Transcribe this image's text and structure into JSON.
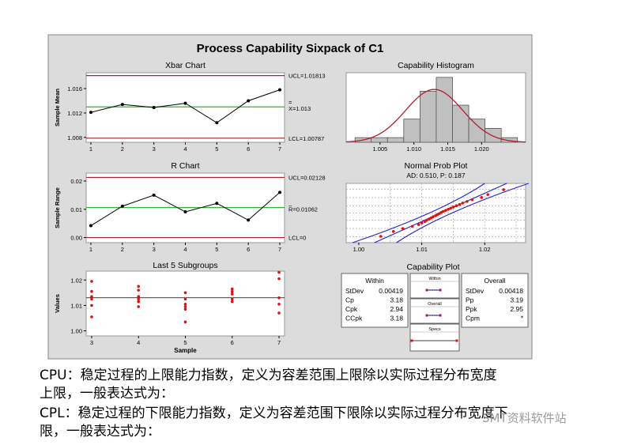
{
  "figure_title": "Process Capability Sixpack of C1",
  "chart_data": [
    {
      "type": "line",
      "title": "Xbar Chart",
      "ylabel": "Sample Mean",
      "x": [
        1,
        2,
        3,
        4,
        5,
        6,
        7
      ],
      "values": [
        1.0121,
        1.0134,
        1.0129,
        1.0136,
        1.0104,
        1.014,
        1.0158
      ],
      "ylim": [
        1.0072,
        1.0186
      ],
      "yticks": [
        1.008,
        1.012,
        1.016
      ],
      "ytick_labels": [
        "1.008",
        "1.012",
        "1.016"
      ],
      "xtick_labels": [
        "1",
        "2",
        "3",
        "4",
        "5",
        "6",
        "7"
      ],
      "ucl": 1.01813,
      "center": 1.013,
      "lcl": 1.00787,
      "ucl_label": "UCL=1.01813",
      "center_label": "X=1.013",
      "center_label_prefix": "=",
      "lcl_label": "LCL=1.00787"
    },
    {
      "type": "line",
      "title": "R Chart",
      "ylabel": "Sample Range",
      "x": [
        1,
        2,
        3,
        4,
        5,
        6,
        7
      ],
      "values": [
        0.0042,
        0.0111,
        0.015,
        0.0091,
        0.0121,
        0.0062,
        0.016
      ],
      "ylim": [
        -0.0018,
        0.0228
      ],
      "yticks": [
        0.0,
        0.01,
        0.02
      ],
      "ytick_labels": [
        "0.00",
        "0.01",
        "0.02"
      ],
      "xtick_labels": [
        "1",
        "2",
        "3",
        "4",
        "5",
        "6",
        "7"
      ],
      "ucl": 0.02128,
      "center": 0.01062,
      "lcl": 0,
      "ucl_label": "UCL=0.02128",
      "center_label": "R=0.01062",
      "center_label_prefix": "_",
      "lcl_label": "LCL=0"
    },
    {
      "type": "scatter",
      "title": "Last 5 Subgroups",
      "xlabel": "Sample",
      "ylabel": "Values",
      "x_categories": [
        3,
        4,
        5,
        6,
        7
      ],
      "points": [
        [
          3,
          1.0195
        ],
        [
          3,
          1.0155
        ],
        [
          3,
          1.0135
        ],
        [
          3,
          1.0125
        ],
        [
          3,
          1.01
        ],
        [
          3,
          1.0055
        ],
        [
          4,
          1.0175
        ],
        [
          4,
          1.016
        ],
        [
          4,
          1.0135
        ],
        [
          4,
          1.0125
        ],
        [
          4,
          1.0115
        ],
        [
          4,
          1.0095
        ],
        [
          5,
          1.015
        ],
        [
          5,
          1.0125
        ],
        [
          5,
          1.0105
        ],
        [
          5,
          1.0095
        ],
        [
          5,
          1.0085
        ],
        [
          5,
          1.0035
        ],
        [
          6,
          1.0165
        ],
        [
          6,
          1.0155
        ],
        [
          6,
          1.0145
        ],
        [
          6,
          1.0125
        ],
        [
          6,
          1.0115
        ],
        [
          7,
          1.023
        ],
        [
          7,
          1.0205
        ],
        [
          7,
          1.013
        ],
        [
          7,
          1.0105
        ],
        [
          7,
          1.007
        ]
      ],
      "mean_line": 1.013,
      "ylim": [
        0.998,
        1.0235
      ],
      "yticks": [
        1.0,
        1.01,
        1.02
      ],
      "ytick_labels": [
        "1.00",
        "1.01",
        "1.02"
      ],
      "xtick_labels": [
        "3",
        "4",
        "5",
        "6",
        "7"
      ]
    },
    {
      "type": "bar",
      "title": "Capability Histogram",
      "bin_edges": [
        1.0013,
        1.0037,
        1.0061,
        1.0085,
        1.0109,
        1.0133,
        1.0157,
        1.0181,
        1.0205,
        1.0229,
        1.0253
      ],
      "counts": [
        1,
        1,
        1,
        5,
        11,
        14,
        8,
        5,
        3,
        1
      ],
      "ylim": [
        0,
        15
      ],
      "curve_mean": 1.013,
      "curve_sd": 0.0042,
      "xlim": [
        1.0,
        1.0265
      ],
      "xticks": [
        1.005,
        1.01,
        1.015,
        1.02
      ],
      "xtick_labels": [
        "1.005",
        "1.010",
        "1.015",
        "1.020"
      ]
    },
    {
      "type": "scatter",
      "title": "Normal Prob Plot",
      "subtitle": "AD: 0.510, P: 0.187",
      "x": [
        1.0035,
        1.0055,
        1.007,
        1.0085,
        1.0095,
        1.01,
        1.0105,
        1.0108,
        1.0112,
        1.0115,
        1.0118,
        1.0122,
        1.0125,
        1.0128,
        1.0131,
        1.0134,
        1.0138,
        1.0142,
        1.0146,
        1.015,
        1.0155,
        1.016,
        1.0165,
        1.0172,
        1.018,
        1.0195,
        1.0205,
        1.023
      ],
      "xlim": [
        0.998,
        1.0265
      ],
      "xticks": [
        1.0,
        1.01,
        1.02
      ],
      "xtick_labels": [
        "1.00",
        "1.01",
        "1.02"
      ]
    },
    {
      "type": "table",
      "title": "Capability Plot",
      "within": {
        "title": "Within",
        "rows": [
          [
            "StDev",
            "0.00419"
          ],
          [
            "Cp",
            "3.18"
          ],
          [
            "Cpk",
            "2.94"
          ],
          [
            "CCpk",
            "3.18"
          ]
        ]
      },
      "overall": {
        "title": "Overall",
        "rows": [
          [
            "StDev",
            "0.00418"
          ],
          [
            "Pp",
            "3.19"
          ],
          [
            "Ppk",
            "2.95"
          ],
          [
            "Cpm",
            "*"
          ]
        ]
      },
      "mini_labels": [
        "Within",
        "Overall",
        "Specs"
      ]
    }
  ],
  "captions": {
    "cpu_line1": "CPU：稳定过程的上限能力指数，定义为容差范围上限除以实际过程分布宽度",
    "cpu_line2": "上限，一般表达式为：",
    "cpl_line1": "CPL：稳定过程的下限能力指数，定义为容差范围下限除以实际过程分布宽度下",
    "cpl_line2": "限，一般表达式为："
  },
  "watermark": "SMT资料软件站",
  "colors": {
    "frame_bg": "#dcdcdc",
    "panel_bg": "#ffffff",
    "ucl": "#b01e2e",
    "center": "#20c020",
    "data_line": "#000000",
    "point_red": "#dd1111",
    "hist_fill": "#c0c0c0",
    "ci_blue": "#2222cc"
  }
}
